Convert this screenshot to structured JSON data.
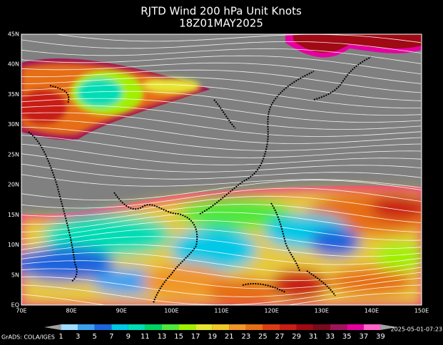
{
  "header": {
    "title": "RJTD Wind 200 hPa Unit Knots",
    "time": "18Z01MAY2025"
  },
  "map": {
    "lat_labels": [
      "45N",
      "40N",
      "35N",
      "30N",
      "25N",
      "20N",
      "15N",
      "10N",
      "5N",
      "EQ"
    ],
    "lon_labels": [
      "70E",
      "80E",
      "90E",
      "100E",
      "110E",
      "120E",
      "130E",
      "140E",
      "150E"
    ]
  },
  "colorbar": {
    "labels": [
      "1",
      "3",
      "5",
      "7",
      "9",
      "11",
      "13",
      "15",
      "17",
      "19",
      "21",
      "23",
      "25",
      "27",
      "29",
      "31",
      "33",
      "35",
      "37",
      "39"
    ],
    "colors": [
      "#a0a0a0",
      "#a0dcff",
      "#3ca0f0",
      "#1e64dc",
      "#00c8e6",
      "#00dcb4",
      "#00d264",
      "#50e63c",
      "#a0f000",
      "#e6e632",
      "#f0c828",
      "#f0962a",
      "#e66e14",
      "#dc3c14",
      "#c81e14",
      "#a00a14",
      "#780a1e",
      "#a0145a",
      "#e600a0",
      "#ff64c8",
      "#a0a0a0"
    ]
  },
  "footer": {
    "credit": "GrADS: COLA/IGES",
    "stamp": "2025-05-01-07:23"
  }
}
